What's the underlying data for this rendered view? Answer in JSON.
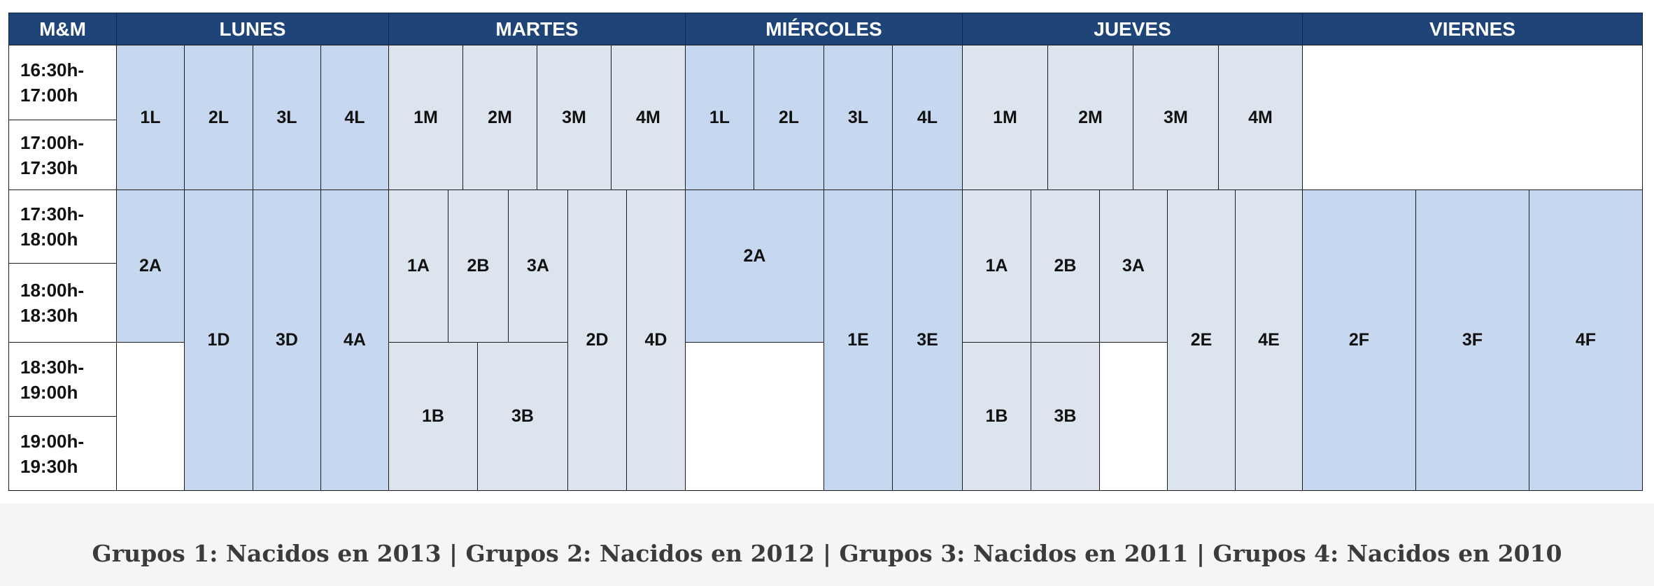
{
  "header": {
    "corner": "M&M",
    "days": [
      "LUNES",
      "MARTES",
      "MIÉRCOLES",
      "JUEVES",
      "VIERNES"
    ]
  },
  "times": [
    "16:30h-\n17:00h",
    "17:00h-\n17:30h",
    "17:30h-\n18:00h",
    "18:00h-\n18:30h",
    "18:30h-\n19:00h",
    "19:00h-\n19:30h"
  ],
  "groups": {
    "lunes_1": [
      "1L",
      "2L",
      "3L",
      "4L"
    ],
    "martes_1": [
      "1M",
      "2M",
      "3M",
      "4M"
    ],
    "miercoles_1": [
      "1L",
      "2L",
      "3L",
      "4L"
    ],
    "jueves_1": [
      "1M",
      "2M",
      "3M",
      "4M"
    ],
    "lunes_2": [
      "2A",
      "1D",
      "3D",
      "4A"
    ],
    "martes_2": [
      "1A",
      "2B",
      "3A",
      "1B",
      "3B",
      "2D",
      "4D"
    ],
    "miercoles_2": [
      "2A",
      "1E",
      "3E"
    ],
    "jueves_2": [
      "1A",
      "2B",
      "3A",
      "1B",
      "3B",
      "2E",
      "4E"
    ],
    "viernes_2": [
      "2F",
      "3F",
      "4F"
    ]
  },
  "caption": "Grupos 1: Nacidos en 2013 | Grupos 2: Nacidos en 2012 | Grupos 3: Nacidos en 2011 | Grupos 4: Nacidos en 2010",
  "colors": {
    "header": "#1f4478",
    "dark_cell": "#c6d8ef",
    "light_cell": "#dce4ee"
  }
}
